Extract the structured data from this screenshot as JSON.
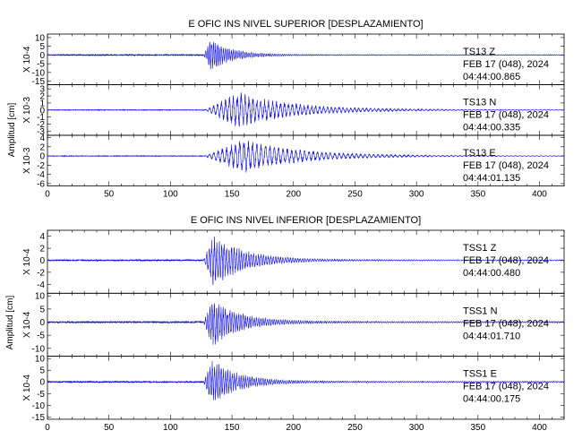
{
  "chart_data": [
    {
      "type": "line",
      "title": "E OFIC INS NIVEL SUPERIOR [DESPLAZAMIENTO]",
      "ylabel": "Amplitud [cm]",
      "xlim": [
        0,
        420
      ],
      "xticks": [
        0,
        50,
        100,
        150,
        200,
        250,
        300,
        350,
        400
      ],
      "grid": false,
      "series": [
        {
          "name": "TS13 Z",
          "station": "TS13",
          "component": "Z",
          "date": "FEB 17 (048), 2024",
          "time": "04:44:00.865",
          "scale_label": "X 10-4",
          "ylim": [
            -17,
            12
          ],
          "yticks": [
            10,
            5,
            0,
            -5,
            -10,
            -15
          ],
          "envelope": {
            "onset": 127,
            "peak": 133,
            "peak_amp": 10,
            "decay": 16,
            "noise": 0.3,
            "period": 1.6
          }
        },
        {
          "name": "TS13 N",
          "station": "TS13",
          "component": "N",
          "date": "FEB 17 (048), 2024",
          "time": "04:44:00.335",
          "scale_label": "X 10-3",
          "ylim": [
            -3.6,
            3.6
          ],
          "yticks": [
            3,
            2,
            1,
            0,
            -1,
            -2,
            -3
          ],
          "envelope": {
            "onset": 128,
            "peak": 155,
            "peak_amp": 2.6,
            "decay": 45,
            "noise": 0.04,
            "period": 3.2
          }
        },
        {
          "name": "TS13 E",
          "station": "TS13",
          "component": "E",
          "date": "FEB 17 (048), 2024",
          "time": "04:44:01.135",
          "scale_label": "X 10-3",
          "ylim": [
            -6.5,
            4.5
          ],
          "yticks": [
            4,
            2,
            0,
            -2,
            -4,
            -6
          ],
          "envelope": {
            "onset": 128,
            "peak": 160,
            "peak_amp": 3.8,
            "decay": 45,
            "noise": 0.06,
            "period": 3.5
          }
        }
      ]
    },
    {
      "type": "line",
      "title": "E OFIC INS NIVEL INFERIOR [DESPLAZAMIENTO]",
      "ylabel": "Amplitud [cm]",
      "xlim": [
        0,
        420
      ],
      "xticks": [
        0,
        50,
        100,
        150,
        200,
        250,
        300,
        350,
        400
      ],
      "grid": false,
      "series": [
        {
          "name": "TSS1 Z",
          "station": "TSS1",
          "component": "Z",
          "date": "FEB 17 (048), 2024",
          "time": "04:44:00.480",
          "scale_label": "X 10-4",
          "ylim": [
            -5.5,
            5
          ],
          "yticks": [
            4,
            2,
            0,
            -2,
            -4
          ],
          "envelope": {
            "onset": 127,
            "peak": 135,
            "peak_amp": 4.5,
            "decay": 25,
            "noise": 0.1,
            "period": 2.0
          }
        },
        {
          "name": "TSS1 N",
          "station": "TSS1",
          "component": "N",
          "date": "FEB 17 (048), 2024",
          "time": "04:44:01.710",
          "scale_label": "X 10-4",
          "ylim": [
            -13,
            11
          ],
          "yticks": [
            10,
            5,
            0,
            -5,
            -10
          ],
          "envelope": {
            "onset": 127,
            "peak": 134,
            "peak_amp": 9.5,
            "decay": 22,
            "noise": 0.3,
            "period": 1.8
          }
        },
        {
          "name": "TSS1 E",
          "station": "TSS1",
          "component": "E",
          "date": "FEB 17 (048), 2024",
          "time": "04:44:00.175",
          "scale_label": "X 10-4",
          "ylim": [
            -16,
            11
          ],
          "yticks": [
            10,
            5,
            0,
            -5,
            -10,
            -15
          ],
          "envelope": {
            "onset": 127,
            "peak": 134,
            "peak_amp": 9.5,
            "decay": 22,
            "noise": 0.3,
            "period": 1.8
          }
        }
      ]
    }
  ]
}
